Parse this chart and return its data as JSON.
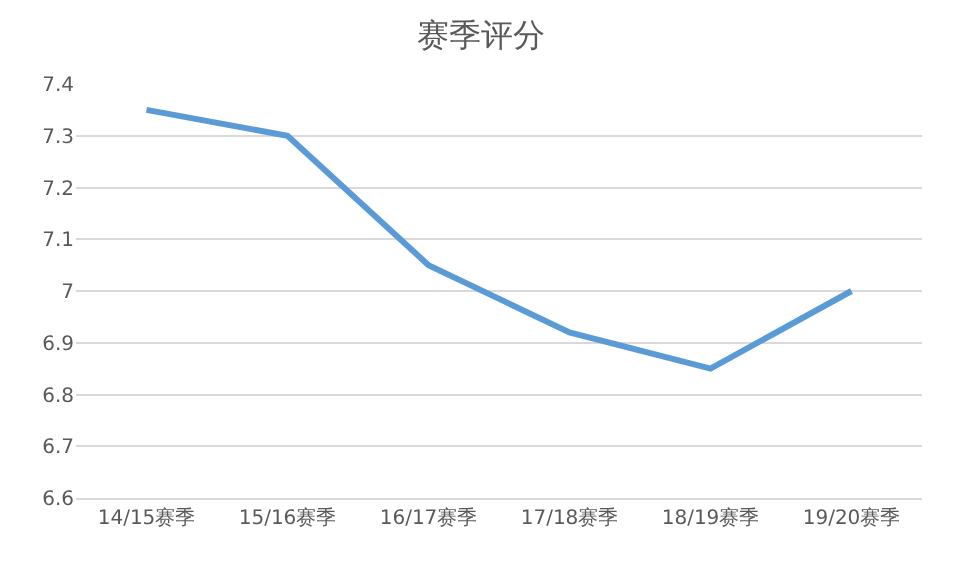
{
  "chart_data": {
    "type": "line",
    "title": "赛季评分",
    "categories": [
      "14/15赛季",
      "15/16赛季",
      "16/17赛季",
      "17/18赛季",
      "18/19赛季",
      "19/20赛季"
    ],
    "series": [
      {
        "color": "#5b9bd5",
        "values": [
          7.35,
          7.3,
          7.05,
          6.92,
          6.85,
          7.0
        ]
      }
    ],
    "ylim": [
      6.6,
      7.4
    ],
    "yticks": [
      6.6,
      6.7,
      6.8,
      6.9,
      {
        "value": 7,
        "label": "7"
      },
      7.1,
      7.2,
      7.3,
      7.4
    ],
    "grid": "y",
    "legend": false,
    "marker": "none",
    "line_style": "solid"
  }
}
